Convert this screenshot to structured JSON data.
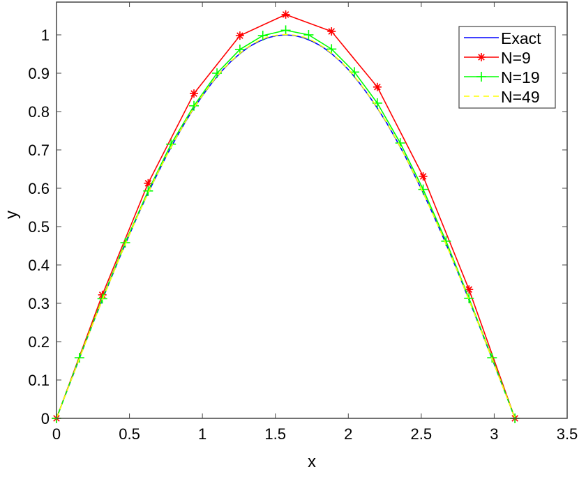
{
  "chart_data": {
    "type": "line",
    "title": "",
    "xlabel": "x",
    "ylabel": "y",
    "xlim": [
      0,
      3.5
    ],
    "ylim": [
      0,
      1.1
    ],
    "grid": false,
    "legend_position": "top-right",
    "xticks": [
      "0",
      "0.5",
      "1",
      "1.5",
      "2",
      "2.5",
      "3",
      "3.5"
    ],
    "yticks": [
      "0",
      "0.1",
      "0.2",
      "0.3",
      "0.4",
      "0.5",
      "0.6",
      "0.7",
      "0.8",
      "0.9",
      "1"
    ],
    "series": [
      {
        "name": "Exact",
        "color": "#0000ff",
        "style": "solid",
        "marker": "none",
        "x": [
          0,
          0.063,
          0.126,
          0.188,
          0.251,
          0.314,
          0.377,
          0.44,
          0.503,
          0.565,
          0.628,
          0.691,
          0.754,
          0.817,
          0.88,
          0.942,
          1.005,
          1.068,
          1.131,
          1.194,
          1.257,
          1.319,
          1.382,
          1.445,
          1.508,
          1.571,
          1.634,
          1.696,
          1.759,
          1.822,
          1.885,
          1.948,
          2.011,
          2.073,
          2.136,
          2.199,
          2.262,
          2.325,
          2.388,
          2.45,
          2.513,
          2.576,
          2.639,
          2.702,
          2.765,
          2.827,
          2.89,
          2.953,
          3.016,
          3.079,
          3.142
        ],
        "y": [
          0,
          0.063,
          0.125,
          0.187,
          0.249,
          0.309,
          0.368,
          0.426,
          0.482,
          0.536,
          0.588,
          0.637,
          0.685,
          0.729,
          0.771,
          0.809,
          0.844,
          0.876,
          0.905,
          0.93,
          0.951,
          0.969,
          0.982,
          0.992,
          0.998,
          1.0,
          0.998,
          0.992,
          0.982,
          0.969,
          0.951,
          0.93,
          0.905,
          0.876,
          0.844,
          0.809,
          0.771,
          0.729,
          0.685,
          0.637,
          0.588,
          0.536,
          0.482,
          0.426,
          0.368,
          0.309,
          0.249,
          0.187,
          0.125,
          0.063,
          0
        ]
      },
      {
        "name": "N=9",
        "color": "#ff0000",
        "style": "solid",
        "marker": "star",
        "x": [
          0,
          0.314,
          0.628,
          0.942,
          1.257,
          1.571,
          1.885,
          2.199,
          2.513,
          2.827,
          3.142
        ],
        "y": [
          0,
          0.322,
          0.613,
          0.847,
          0.998,
          1.053,
          1.009,
          0.864,
          0.631,
          0.336,
          0
        ]
      },
      {
        "name": "N=19",
        "color": "#00ff00",
        "style": "solid",
        "marker": "plus",
        "x": [
          0,
          0.157,
          0.314,
          0.471,
          0.628,
          0.785,
          0.942,
          1.1,
          1.257,
          1.414,
          1.571,
          1.728,
          1.885,
          2.042,
          2.199,
          2.356,
          2.513,
          2.67,
          2.827,
          2.985,
          3.142
        ],
        "y": [
          0,
          0.158,
          0.312,
          0.458,
          0.593,
          0.715,
          0.815,
          0.9,
          0.962,
          0.998,
          1.012,
          1.0,
          0.963,
          0.903,
          0.822,
          0.718,
          0.597,
          0.462,
          0.313,
          0.158,
          0
        ]
      },
      {
        "name": "N=49",
        "color": "#ffff00",
        "style": "dashed",
        "marker": "none",
        "x": [
          0,
          0.063,
          0.126,
          0.188,
          0.251,
          0.314,
          0.377,
          0.44,
          0.503,
          0.565,
          0.628,
          0.691,
          0.754,
          0.817,
          0.88,
          0.942,
          1.005,
          1.068,
          1.131,
          1.194,
          1.257,
          1.319,
          1.382,
          1.445,
          1.508,
          1.571,
          1.634,
          1.696,
          1.759,
          1.822,
          1.885,
          1.948,
          2.011,
          2.073,
          2.136,
          2.199,
          2.262,
          2.325,
          2.388,
          2.45,
          2.513,
          2.576,
          2.639,
          2.702,
          2.765,
          2.827,
          2.89,
          2.953,
          3.016,
          3.079,
          3.142
        ],
        "y": [
          0,
          0.063,
          0.125,
          0.187,
          0.249,
          0.309,
          0.368,
          0.426,
          0.482,
          0.536,
          0.588,
          0.638,
          0.685,
          0.73,
          0.772,
          0.81,
          0.845,
          0.877,
          0.906,
          0.931,
          0.952,
          0.97,
          0.984,
          0.994,
          0.999,
          1.001,
          0.999,
          0.994,
          0.984,
          0.97,
          0.952,
          0.931,
          0.906,
          0.877,
          0.845,
          0.81,
          0.772,
          0.73,
          0.685,
          0.638,
          0.588,
          0.536,
          0.482,
          0.426,
          0.368,
          0.309,
          0.249,
          0.187,
          0.125,
          0.063,
          0
        ]
      }
    ]
  }
}
